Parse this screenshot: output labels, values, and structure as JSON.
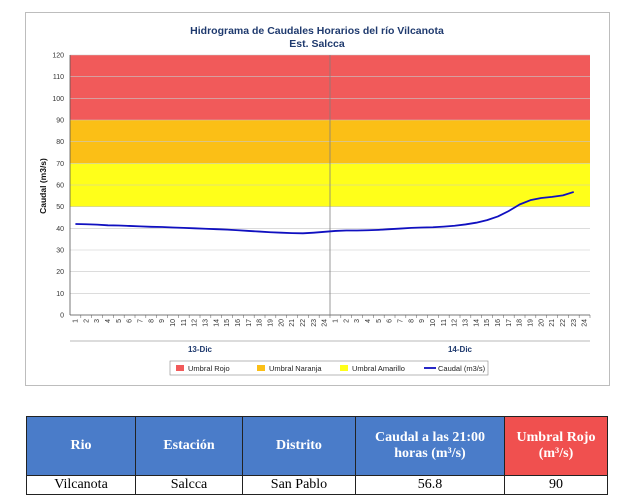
{
  "chart_data": {
    "type": "line",
    "title": "Hidrograma de Caudales Horarios del río Vilcanota",
    "subtitle": "Est. Salcca",
    "ylabel": "Caudal  (m3/s)",
    "ylim": [
      0,
      120
    ],
    "yticks": [
      0,
      10,
      20,
      30,
      40,
      50,
      60,
      70,
      80,
      90,
      100,
      110,
      120
    ],
    "day_labels": [
      "13-Dic",
      "14-Dic"
    ],
    "hour_ticks": [
      "1",
      "2",
      "3",
      "4",
      "5",
      "6",
      "7",
      "8",
      "9",
      "10",
      "11",
      "12",
      "13",
      "14",
      "15",
      "16",
      "17",
      "18",
      "19",
      "20",
      "21",
      "22",
      "23",
      "24"
    ],
    "thresholds": [
      {
        "name": "Umbral Rojo",
        "from": 90,
        "to": 120,
        "color": "#f15a5a"
      },
      {
        "name": "Umbral Naranja",
        "from": 70,
        "to": 90,
        "color": "#fbbf16"
      },
      {
        "name": "Umbral Amarillo",
        "from": 50,
        "to": 70,
        "color": "#ffff1a"
      }
    ],
    "series": [
      {
        "name": "Caudal (m3/s)",
        "color": "#1010c0",
        "values": [
          42,
          41.9,
          41.7,
          41.4,
          41.3,
          41.1,
          40.9,
          40.7,
          40.6,
          40.4,
          40.2,
          40,
          39.8,
          39.6,
          39.4,
          39.1,
          38.8,
          38.5,
          38.2,
          38,
          37.8,
          37.7,
          38,
          38.4,
          38.8,
          39,
          39,
          39.1,
          39.3,
          39.6,
          39.9,
          40.2,
          40.4,
          40.5,
          40.8,
          41.2,
          41.8,
          42.6,
          43.8,
          45.5,
          48,
          51,
          53,
          54,
          54.5,
          55.2,
          56.8
        ]
      }
    ],
    "legend_position": "bottom"
  },
  "table": {
    "headers": [
      "Rio",
      "Estación",
      "Distrito",
      "Caudal a las 21:00 horas (m³/s)",
      "Umbral Rojo (m³/s)"
    ],
    "header_colors": [
      "#4a7cc9",
      "#4a7cc9",
      "#4a7cc9",
      "#4a7cc9",
      "#f0504f"
    ],
    "row": [
      "Vilcanota",
      "Salcca",
      "San Pablo",
      "56.8",
      "90"
    ]
  }
}
